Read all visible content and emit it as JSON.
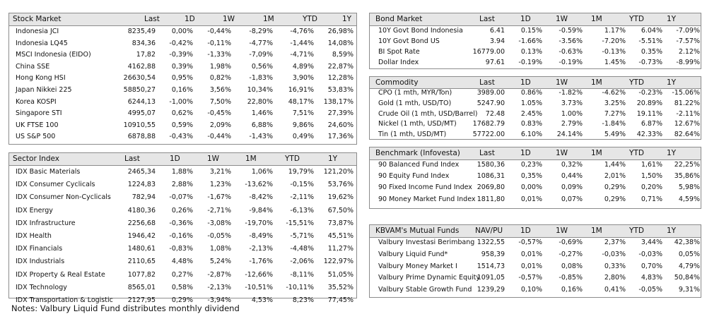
{
  "stock_market": {
    "header": [
      "Stock Market",
      "Last",
      "1D",
      "1W",
      "1M",
      "YTD",
      "1Y"
    ],
    "rows": [
      [
        "Indonesia JCI",
        "8235,49",
        "0,00%",
        "-0,44%",
        "-8,29%",
        "-4,76%",
        "26,98%"
      ],
      [
        "Indonesia LQ45",
        "834,36",
        "-0,42%",
        "-0,11%",
        "-4,77%",
        "-1,44%",
        "14,08%"
      ],
      [
        "MSCI Indonesia (EIDO)",
        "17,82",
        "-0,39%",
        "-1,33%",
        "-7,09%",
        "-4,71%",
        "8,59%"
      ],
      [
        "China SSE",
        "4162,88",
        "0,39%",
        "1,98%",
        "0,56%",
        "4,89%",
        "22,87%"
      ],
      [
        "Hong Kong HSI",
        "26630,54",
        "0,95%",
        "0,82%",
        "-1,83%",
        "3,90%",
        "12,28%"
      ],
      [
        "Japan Nikkei 225",
        "58850,27",
        "0,16%",
        "3,56%",
        "10,34%",
        "16,91%",
        "53,83%"
      ],
      [
        "Korea KOSPI",
        "6244,13",
        "-1,00%",
        "7,50%",
        "22,80%",
        "48,17%",
        "138,17%"
      ],
      [
        "Singapore STI",
        "4995,07",
        "0,62%",
        "-0,45%",
        "1,46%",
        "7,51%",
        "27,39%"
      ],
      [
        "UK FTSE 100",
        "10910,55",
        "0,59%",
        "2,09%",
        "6,88%",
        "9,86%",
        "24,60%"
      ],
      [
        "US S&P 500",
        "6878,88",
        "-0,43%",
        "-0,44%",
        "-1,43%",
        "0,49%",
        "17,36%"
      ]
    ]
  },
  "sector_index": {
    "header": [
      "Sector Index",
      "Last",
      "1D",
      "1W",
      "1M",
      "YTD",
      "1Y"
    ],
    "rows": [
      [
        "IDX Basic Materials",
        "2465,34",
        "1,88%",
        "3,21%",
        "1,06%",
        "19,79%",
        "121,20%"
      ],
      [
        "IDX Consumer Cyclicals",
        "1224,83",
        "2,88%",
        "1,23%",
        "-13,62%",
        "-0,15%",
        "53,76%"
      ],
      [
        "IDX Consumer Non-Cyclicals",
        "782,94",
        "-0,07%",
        "-1,67%",
        "-8,42%",
        "-2,11%",
        "19,62%"
      ],
      [
        "IDX Energy",
        "4180,36",
        "0,26%",
        "-2,71%",
        "-9,84%",
        "-6,13%",
        "67,50%"
      ],
      [
        "IDX Infrastructure",
        "2256,68",
        "-0,36%",
        "-3,08%",
        "-19,70%",
        "-15,51%",
        "73,87%"
      ],
      [
        "IDX Health",
        "1946,42",
        "-0,16%",
        "-0,05%",
        "-8,49%",
        "-5,71%",
        "45,51%"
      ],
      [
        "IDX Financials",
        "1480,61",
        "-0,83%",
        "1,08%",
        "-2,13%",
        "-4,48%",
        "11,27%"
      ],
      [
        "IDX Industrials",
        "2110,65",
        "4,48%",
        "5,24%",
        "-1,76%",
        "-2,06%",
        "122,97%"
      ],
      [
        "IDX Property & Real Estate",
        "1077,82",
        "0,27%",
        "-2,87%",
        "-12,66%",
        "-8,11%",
        "51,05%"
      ],
      [
        "IDX Technology",
        "8565,01",
        "0,58%",
        "-2,13%",
        "-10,51%",
        "-10,11%",
        "35,52%"
      ],
      [
        "IDX Transportation & Logistic",
        "2127,95",
        "0,29%",
        "-3,94%",
        "4,53%",
        "8,23%",
        "77,45%"
      ]
    ]
  },
  "bond_market": {
    "header": [
      "Bond Market",
      "Last",
      "1D",
      "1W",
      "1M",
      "YTD",
      "1Y"
    ],
    "rows": [
      [
        "10Y Govt Bond Indonesia",
        "6.41",
        "0.15%",
        "-0.59%",
        "1.17%",
        "6.04%",
        "-7.09%"
      ],
      [
        "10Y Govt Bond US",
        "3.94",
        "-1.66%",
        "-3.56%",
        "-7.20%",
        "-5.51%",
        "-7.57%"
      ],
      [
        "BI Spot Rate",
        "16779.00",
        "0.13%",
        "-0.63%",
        "-0.13%",
        "0.35%",
        "2.12%"
      ],
      [
        "Dollar Index",
        "97.61",
        "-0.19%",
        "-0.19%",
        "1.45%",
        "-0.73%",
        "-8.99%"
      ]
    ]
  },
  "commodity": {
    "header": [
      "Commodity",
      "Last",
      "1D",
      "1W",
      "1M",
      "YTD",
      "1Y"
    ],
    "rows": [
      [
        "CPO (1 mth, MYR/Ton)",
        "3989.00",
        "0.86%",
        "-1.82%",
        "-4.62%",
        "-0.23%",
        "-15.06%"
      ],
      [
        "Gold (1 mth, USD/TO)",
        "5247.90",
        "1.05%",
        "3.73%",
        "3.25%",
        "20.89%",
        "81.22%"
      ],
      [
        "Crude Oil (1 mth, USD/Barrel)",
        "72.48",
        "2.45%",
        "1.00%",
        "7.27%",
        "19.11%",
        "-2.11%"
      ],
      [
        "Nickel (1 mth, USD/MT)",
        "17682.79",
        "0.83%",
        "2.79%",
        "-1.84%",
        "6.87%",
        "12.67%"
      ],
      [
        "Tin (1 mth, USD/MT)",
        "57722.00",
        "6.10%",
        "24.14%",
        "5.49%",
        "42.33%",
        "82.64%"
      ]
    ]
  },
  "benchmark": {
    "header": [
      "Benchmark (Infovesta)",
      "Last",
      "1D",
      "1W",
      "1M",
      "YTD",
      "1Y"
    ],
    "rows": [
      [
        "90 Balanced Fund Index",
        "1580,36",
        "0,23%",
        "0,32%",
        "1,44%",
        "1,61%",
        "22,25%"
      ],
      [
        "90 Equity Fund Index",
        "1086,31",
        "0,35%",
        "0,44%",
        "2,01%",
        "1,50%",
        "35,86%"
      ],
      [
        "90 Fixed Income Fund Index",
        "2069,80",
        "0,00%",
        "0,09%",
        "0,29%",
        "0,20%",
        "5,98%"
      ],
      [
        "90 Money Market Fund Index",
        "1811,80",
        "0,01%",
        "0,07%",
        "0,29%",
        "0,71%",
        "4,59%"
      ]
    ]
  },
  "mutual_funds": {
    "header": [
      "KBVAM's Mutual Funds",
      "NAV/PU",
      "1D",
      "1W",
      "1M",
      "YTD",
      "1Y"
    ],
    "rows": [
      [
        "Valbury Investasi Berimbang",
        "1322,55",
        "-0,57%",
        "-0,69%",
        "2,37%",
        "3,44%",
        "42,38%"
      ],
      [
        "Valbury Liquid Fund*",
        "958,39",
        "0,01%",
        "-0,27%",
        "-0,03%",
        "-0,03%",
        "0,05%"
      ],
      [
        "Valbury Money Market I",
        "1514,73",
        "0,01%",
        "0,08%",
        "0,33%",
        "0,70%",
        "4,79%"
      ],
      [
        "Valbury Prime Dynamic Equity",
        "1091,05",
        "-0,57%",
        "-0,85%",
        "2,80%",
        "4,83%",
        "50,84%"
      ],
      [
        "Valbury Stable Growth Fund",
        "1239,29",
        "0,10%",
        "0,16%",
        "0,41%",
        "-0,05%",
        "9,31%"
      ]
    ]
  },
  "notes": "Notes: Valbury Liquid Fund distributes monthly dividend"
}
